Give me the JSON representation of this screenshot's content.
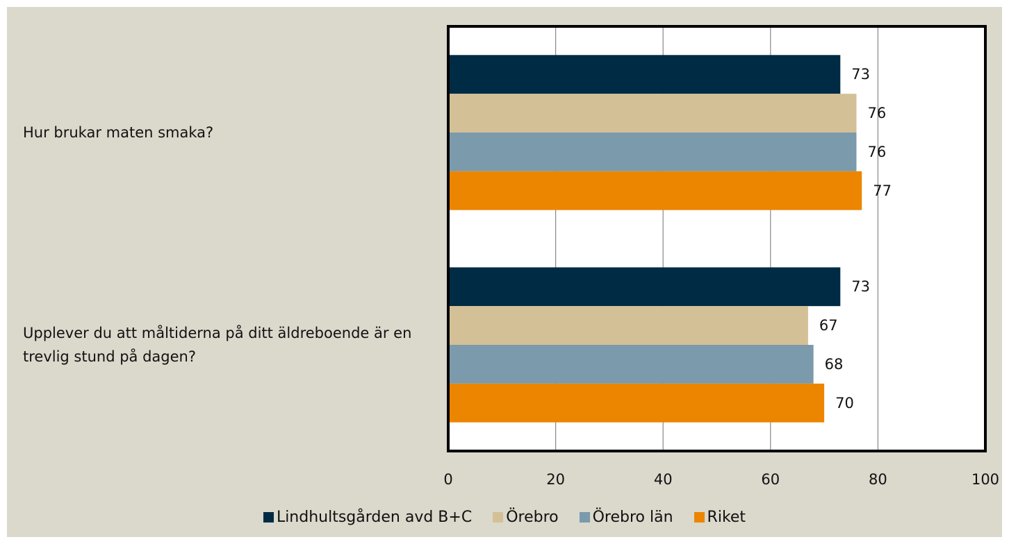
{
  "chart_data": {
    "type": "bar",
    "orientation": "horizontal",
    "categories": [
      "Hur brukar maten smaka?",
      "Upplever du att måltiderna på ditt äldreboende är en trevlig stund på dagen?"
    ],
    "series": [
      {
        "name": "Lindhultsgården avd B+C",
        "color": "#002b45",
        "values": [
          73,
          73
        ]
      },
      {
        "name": "Örebro",
        "color": "#d4c096",
        "values": [
          76,
          67
        ]
      },
      {
        "name": "Örebro län",
        "color": "#7b9aab",
        "values": [
          76,
          68
        ]
      },
      {
        "name": "Riket",
        "color": "#ec8500",
        "values": [
          77,
          70
        ]
      }
    ],
    "xlim": [
      0,
      100
    ],
    "xticks": [
      0,
      20,
      40,
      60,
      80,
      100
    ],
    "grid": true,
    "legend": "bottom"
  }
}
